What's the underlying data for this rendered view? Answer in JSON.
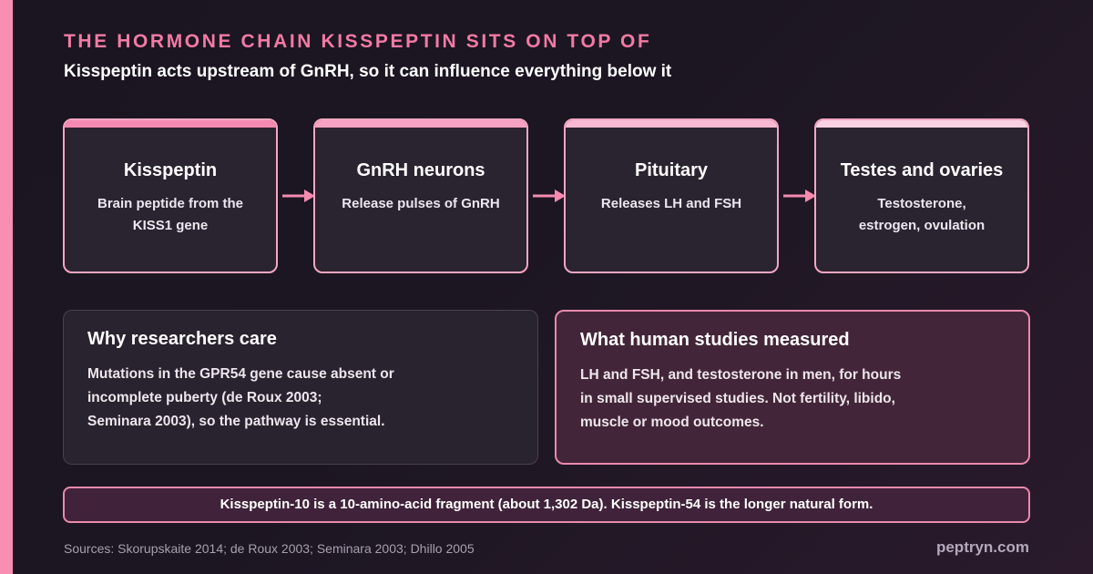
{
  "header": {
    "title": "The hormone chain kisspeptin sits on top of",
    "subtitle": "Kisspeptin acts upstream of GnRH, so it can influence everything below it"
  },
  "colors": {
    "accent_pink": "#f78fb3",
    "title_pink": "#f27aa4",
    "stage_bars": [
      "#f58ab0",
      "#f6a2c1",
      "#f7b9d1",
      "#f8d2e2"
    ]
  },
  "stages": [
    {
      "name": "Kisspeptin",
      "desc_lines": [
        "Brain peptide from the",
        "KISS1 gene"
      ]
    },
    {
      "name": "GnRH neurons",
      "desc_lines": [
        "Release pulses of GnRH"
      ]
    },
    {
      "name": "Pituitary",
      "desc_lines": [
        "Releases LH and FSH"
      ]
    },
    {
      "name": "Testes and ovaries",
      "desc_lines": [
        "Testosterone,",
        "estrogen, ovulation"
      ]
    }
  ],
  "panels": {
    "left": {
      "title": "Why researchers care",
      "body_lines": [
        "Mutations in the GPR54 gene cause absent or",
        "incomplete puberty (de Roux 2003;",
        "Seminara 2003), so the pathway is essential."
      ]
    },
    "right": {
      "title": "What human studies measured",
      "body_lines": [
        "LH and FSH, and testosterone in men, for hours",
        "in small supervised studies. Not fertility, libido,",
        "muscle or mood outcomes."
      ]
    }
  },
  "note": "Kisspeptin-10 is a 10-amino-acid fragment (about 1,302 Da). Kisspeptin-54 is the longer natural form.",
  "footer": {
    "sources": "Sources: Skorupskaite 2014; de Roux 2003; Seminara 2003; Dhillo 2005",
    "brand": "peptryn.com"
  }
}
